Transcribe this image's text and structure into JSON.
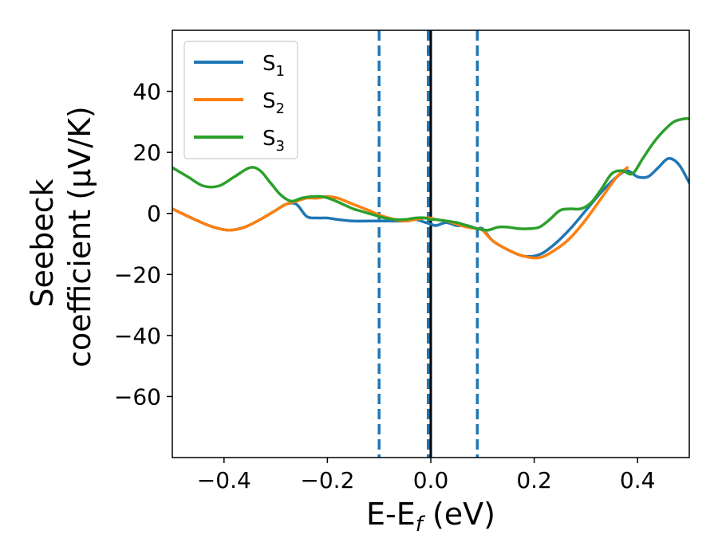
{
  "chart_data": {
    "type": "line",
    "title": "",
    "xlabel": {
      "main": "E-E",
      "sub": "f",
      "tail": " (eV)"
    },
    "ylabel": {
      "line1": "Seebeck",
      "line2": "coefficient  (μV/K)"
    },
    "xlim": [
      -0.5,
      0.5
    ],
    "ylim": [
      -80,
      60
    ],
    "xticks": [
      -0.4,
      -0.2,
      0.0,
      0.2,
      0.4
    ],
    "xtick_labels": [
      "−0.4",
      "−0.2",
      "0.0",
      "0.2",
      "0.4"
    ],
    "yticks": [
      -60,
      -40,
      -20,
      0,
      20,
      40
    ],
    "ytick_labels": [
      "−60",
      "−40",
      "−20",
      "0",
      "20",
      "40"
    ],
    "grid": false,
    "legend_position": "top-left",
    "vlines": [
      {
        "x": -0.1,
        "style": "dashed",
        "color": "#1f77b4"
      },
      {
        "x": -0.005,
        "style": "dashed",
        "color": "#1f77b4"
      },
      {
        "x": 0.09,
        "style": "dashed",
        "color": "#1f77b4"
      },
      {
        "x": 0.0,
        "style": "solid",
        "color": "#000000"
      }
    ],
    "series": [
      {
        "name": "S1",
        "label_main": "S",
        "label_sub": "1",
        "color": "#1f77b4",
        "x": [
          -0.5,
          -0.45,
          -0.42,
          -0.39,
          -0.36,
          -0.33,
          -0.3,
          -0.28,
          -0.26,
          -0.24,
          -0.22,
          -0.2,
          -0.18,
          -0.15,
          -0.12,
          -0.1,
          -0.07,
          -0.05,
          -0.03,
          -0.01,
          0.0,
          0.01,
          0.03,
          0.05,
          0.07,
          0.09,
          0.1,
          0.12,
          0.15,
          0.18,
          0.21,
          0.24,
          0.27,
          0.3,
          0.33,
          0.36,
          0.38,
          0.4,
          0.42,
          0.44,
          0.46,
          0.48,
          0.5
        ],
        "y": [
          1.5,
          -2.5,
          -4.5,
          -5.5,
          -4.5,
          -2,
          1,
          3,
          3,
          -1,
          -1.5,
          -1.5,
          -2,
          -2.5,
          -2.5,
          -2.5,
          -2.5,
          -2.5,
          -2,
          -3,
          -3.5,
          -4,
          -3,
          -4,
          -4,
          -5,
          -5,
          -9,
          -12,
          -14,
          -13.5,
          -10,
          -5,
          1,
          7,
          12,
          14,
          12,
          12,
          15,
          18,
          16,
          10
        ]
      },
      {
        "name": "S2",
        "label_main": "S",
        "label_sub": "2",
        "color": "#ff7f0e",
        "x": [
          -0.5,
          -0.45,
          -0.42,
          -0.39,
          -0.36,
          -0.33,
          -0.3,
          -0.28,
          -0.26,
          -0.24,
          -0.22,
          -0.2,
          -0.18,
          -0.15,
          -0.12,
          -0.1,
          -0.07,
          -0.05,
          -0.03,
          -0.01,
          0.0,
          0.01,
          0.03,
          0.05,
          0.07,
          0.09,
          0.1,
          0.12,
          0.15,
          0.18,
          0.21,
          0.24,
          0.27,
          0.3,
          0.33,
          0.36,
          0.38
        ],
        "y": [
          1.5,
          -2.5,
          -4.5,
          -5.5,
          -4.5,
          -2,
          1,
          3,
          4,
          5,
          5,
          5.5,
          5,
          3,
          1,
          -0.5,
          -2,
          -2.5,
          -2,
          -1.5,
          -1.5,
          -2,
          -2.5,
          -3.5,
          -4.5,
          -5,
          -5.5,
          -9,
          -12,
          -14,
          -14.5,
          -12,
          -8,
          -2,
          5,
          12,
          15
        ]
      },
      {
        "name": "S3",
        "label_main": "S",
        "label_sub": "3",
        "color": "#2ca02c",
        "x": [
          -0.5,
          -0.47,
          -0.44,
          -0.41,
          -0.38,
          -0.35,
          -0.33,
          -0.31,
          -0.29,
          -0.27,
          -0.25,
          -0.23,
          -0.21,
          -0.19,
          -0.17,
          -0.15,
          -0.13,
          -0.11,
          -0.09,
          -0.07,
          -0.05,
          -0.03,
          -0.01,
          0.0,
          0.01,
          0.03,
          0.05,
          0.07,
          0.09,
          0.11,
          0.13,
          0.15,
          0.17,
          0.19,
          0.21,
          0.23,
          0.25,
          0.27,
          0.29,
          0.31,
          0.33,
          0.35,
          0.37,
          0.39,
          0.41,
          0.43,
          0.45,
          0.47,
          0.49,
          0.5
        ],
        "y": [
          15,
          12,
          9,
          9,
          12,
          15,
          14,
          10,
          6,
          4,
          5,
          5.5,
          5.5,
          4.5,
          3,
          1.5,
          0.5,
          -0.5,
          -1.5,
          -2,
          -2,
          -1.5,
          -1.5,
          -2,
          -2,
          -2.5,
          -3,
          -4,
          -5,
          -5.5,
          -4.5,
          -4.5,
          -5,
          -5,
          -4.5,
          -2,
          1,
          1.5,
          1.5,
          3.5,
          8,
          13,
          14,
          13,
          18,
          23,
          27,
          30,
          31,
          31
        ]
      }
    ]
  }
}
